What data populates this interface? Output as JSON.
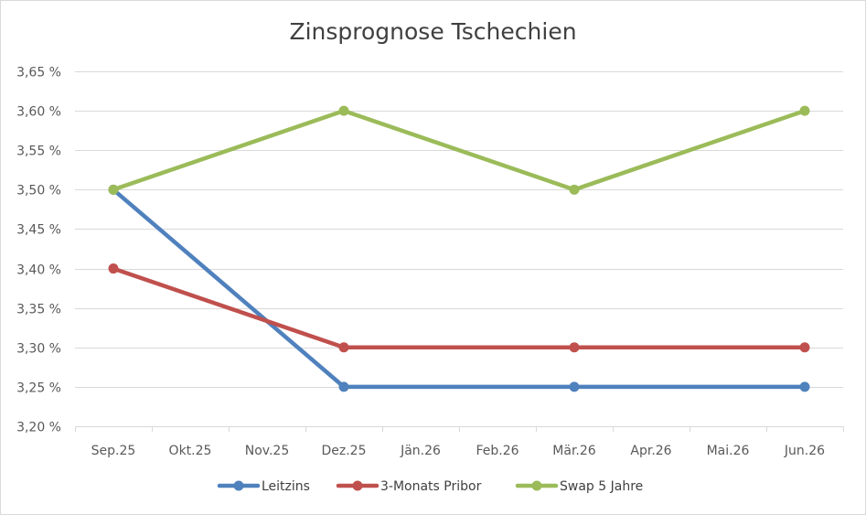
{
  "chart_data": {
    "type": "line",
    "title": "Zinsprognose Tschechien",
    "categories": [
      "Sep.25",
      "Okt.25",
      "Nov.25",
      "Dez.25",
      "Jän.26",
      "Feb.26",
      "Mär.26",
      "Apr.26",
      "Mai.26",
      "Jun.26"
    ],
    "ylim": [
      3.2,
      3.65
    ],
    "yticks": [
      3.2,
      3.25,
      3.3,
      3.35,
      3.4,
      3.45,
      3.5,
      3.55,
      3.6,
      3.65
    ],
    "ytick_labels": [
      "3,20 %",
      "3,25 %",
      "3,30 %",
      "3,35 %",
      "3,40 %",
      "3,45 %",
      "3,50 %",
      "3,55 %",
      "3,60 %",
      "3,65 %"
    ],
    "grid": true,
    "legend_position": "bottom",
    "series": [
      {
        "name": "Leitzins",
        "color": "#4f81bd",
        "points": [
          [
            0,
            3.5
          ],
          [
            3,
            3.25
          ],
          [
            6,
            3.25
          ],
          [
            9,
            3.25
          ]
        ]
      },
      {
        "name": "3-Monats Pribor",
        "color": "#c0504d",
        "points": [
          [
            0,
            3.4
          ],
          [
            3,
            3.3
          ],
          [
            6,
            3.3
          ],
          [
            9,
            3.3
          ]
        ]
      },
      {
        "name": "Swap 5 Jahre",
        "color": "#9bbb59",
        "points": [
          [
            0,
            3.5
          ],
          [
            3,
            3.6
          ],
          [
            6,
            3.5
          ],
          [
            9,
            3.6
          ]
        ]
      }
    ]
  }
}
